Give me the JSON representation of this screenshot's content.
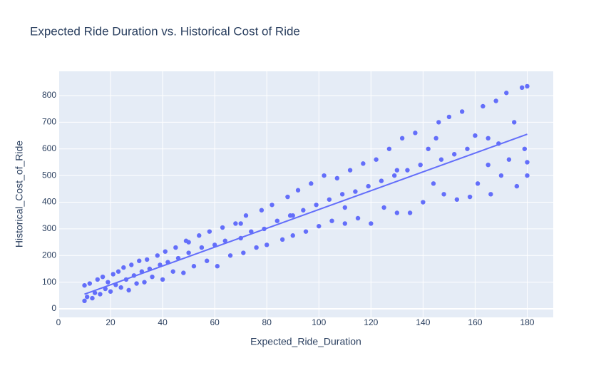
{
  "chart_data": {
    "type": "scatter",
    "title": "Expected Ride Duration vs. Historical Cost of Ride",
    "x_label": "Expected_Ride_Duration",
    "y_label": "Historical_Cost_of_Ride",
    "xlim": [
      0,
      190
    ],
    "ylim": [
      -32,
      891
    ],
    "xticks": [
      0,
      20,
      40,
      60,
      80,
      100,
      120,
      140,
      160,
      180
    ],
    "yticks": [
      0,
      100,
      200,
      300,
      400,
      500,
      600,
      700,
      800
    ],
    "grid": true,
    "series": [
      {
        "mode": "markers",
        "color": "#636efa",
        "x": [
          10,
          10,
          11,
          12,
          13,
          14,
          15,
          16,
          17,
          18,
          19,
          20,
          21,
          22,
          23,
          24,
          25,
          26,
          27,
          28,
          29,
          30,
          31,
          32,
          33,
          34,
          35,
          36,
          38,
          39,
          40,
          41,
          42,
          44,
          45,
          46,
          48,
          49,
          50,
          52,
          54,
          55,
          57,
          58,
          60,
          61,
          63,
          64,
          66,
          68,
          70,
          71,
          72,
          74,
          76,
          78,
          79,
          80,
          82,
          84,
          86,
          88,
          89,
          90,
          92,
          94,
          95,
          97,
          99,
          100,
          102,
          104,
          105,
          107,
          109,
          110,
          112,
          114,
          115,
          117,
          119,
          120,
          122,
          124,
          125,
          127,
          129,
          130,
          132,
          134,
          135,
          137,
          139,
          140,
          142,
          144,
          146,
          147,
          148,
          150,
          152,
          153,
          155,
          157,
          158,
          160,
          161,
          163,
          165,
          166,
          168,
          169,
          170,
          172,
          173,
          175,
          176,
          178,
          179,
          180,
          180,
          180,
          165,
          145,
          130,
          110,
          90,
          70,
          50
        ],
        "y": [
          30,
          88,
          45,
          95,
          40,
          60,
          110,
          55,
          120,
          75,
          100,
          65,
          130,
          90,
          140,
          80,
          155,
          110,
          70,
          165,
          125,
          95,
          180,
          140,
          100,
          185,
          150,
          120,
          200,
          165,
          110,
          215,
          175,
          140,
          230,
          190,
          135,
          255,
          210,
          160,
          275,
          230,
          180,
          290,
          240,
          160,
          305,
          255,
          200,
          320,
          265,
          210,
          350,
          290,
          230,
          370,
          300,
          240,
          390,
          330,
          260,
          420,
          350,
          275,
          445,
          370,
          290,
          470,
          390,
          310,
          500,
          410,
          330,
          490,
          430,
          320,
          520,
          440,
          340,
          545,
          460,
          320,
          560,
          480,
          380,
          600,
          500,
          360,
          640,
          520,
          360,
          660,
          540,
          400,
          600,
          470,
          700,
          560,
          430,
          720,
          580,
          410,
          740,
          600,
          420,
          650,
          470,
          760,
          640,
          430,
          780,
          620,
          500,
          810,
          560,
          700,
          460,
          830,
          600,
          500,
          835,
          550,
          540,
          640,
          520,
          380,
          350,
          320,
          250
        ]
      },
      {
        "mode": "lines",
        "color": "#636efa",
        "x": [
          10,
          180
        ],
        "y": [
          55,
          655
        ]
      }
    ]
  }
}
